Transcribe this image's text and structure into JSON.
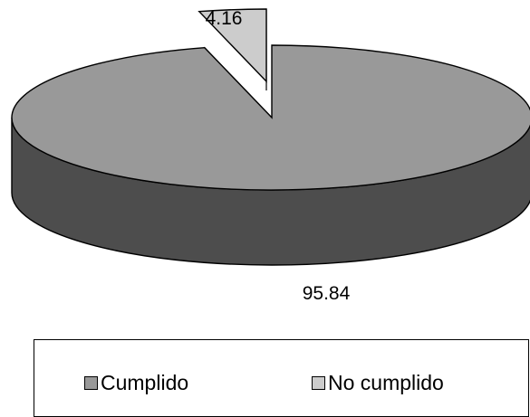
{
  "chart_data": {
    "type": "pie",
    "style": "3d-exploded",
    "categories": [
      "Cumplido",
      "No cumplido"
    ],
    "values": [
      95.84,
      4.16
    ],
    "data_labels": [
      "95.84",
      "4.16"
    ],
    "legend_position": "bottom",
    "colors": {
      "Cumplido_top": "#999999",
      "Cumplido_side": "#4d4d4d",
      "No_cumplido_top": "#cccccc",
      "No_cumplido_side": "#6a6a6a",
      "outline": "#000000"
    }
  }
}
